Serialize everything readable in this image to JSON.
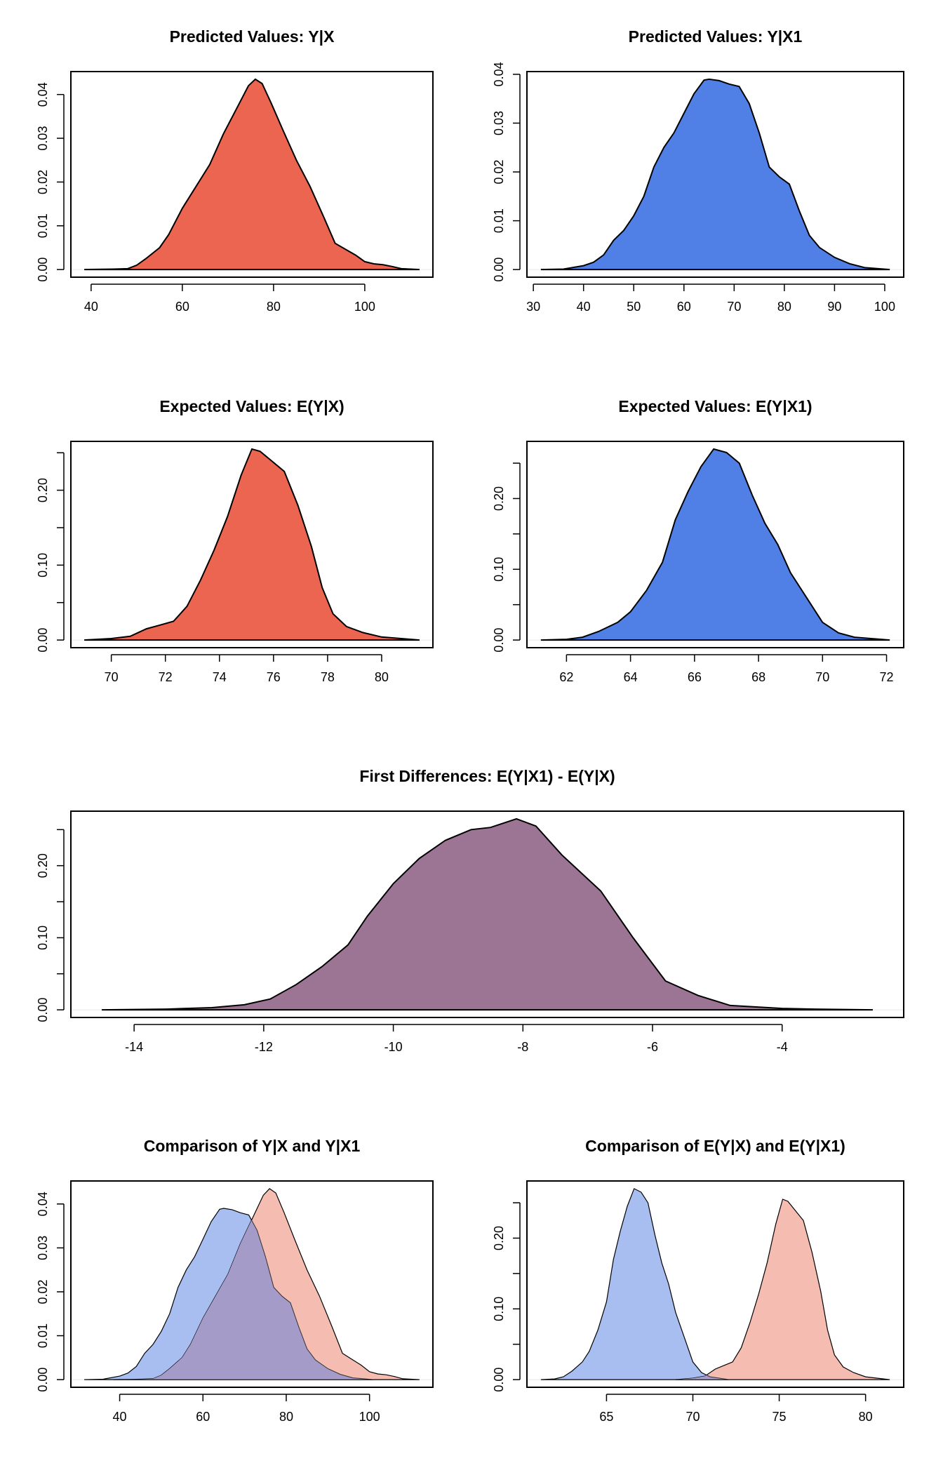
{
  "chart_data": [
    {
      "type": "area",
      "title": "Predicted Values: Y|X",
      "xticks": [
        40,
        60,
        80,
        100
      ],
      "yticks": [
        0,
        0.01,
        0.02,
        0.03,
        0.04
      ],
      "ytick_labels": [
        "0.00",
        "0.01",
        "0.02",
        "0.03",
        "0.04"
      ],
      "series": [
        {
          "name": "Y|X",
          "color": "#EB6550",
          "points": [
            [
              38.5,
              0
            ],
            [
              45,
              0.0001
            ],
            [
              48,
              0.0002
            ],
            [
              50,
              0.001
            ],
            [
              52,
              0.0025
            ],
            [
              55,
              0.005
            ],
            [
              57,
              0.008
            ],
            [
              60,
              0.014
            ],
            [
              63,
              0.019
            ],
            [
              66,
              0.024
            ],
            [
              69,
              0.031
            ],
            [
              72,
              0.037
            ],
            [
              74.5,
              0.042
            ],
            [
              76,
              0.0435
            ],
            [
              77.5,
              0.0425
            ],
            [
              79.5,
              0.038
            ],
            [
              82,
              0.032
            ],
            [
              85,
              0.025
            ],
            [
              88,
              0.019
            ],
            [
              91,
              0.012
            ],
            [
              93.5,
              0.006
            ],
            [
              96,
              0.0045
            ],
            [
              98,
              0.0033
            ],
            [
              100,
              0.0018
            ],
            [
              102,
              0.0013
            ],
            [
              104,
              0.0011
            ],
            [
              106,
              0.0007
            ],
            [
              108,
              0.0002
            ],
            [
              112,
              0
            ]
          ]
        }
      ]
    },
    {
      "type": "area",
      "title": "Predicted Values: Y|X1",
      "xticks": [
        30,
        40,
        50,
        60,
        70,
        80,
        90,
        100
      ],
      "yticks": [
        0,
        0.01,
        0.02,
        0.03,
        0.04
      ],
      "ytick_labels": [
        "0.00",
        "0.01",
        "0.02",
        "0.03",
        "0.04"
      ],
      "series": [
        {
          "name": "Y|X1",
          "color": "#5080E6",
          "points": [
            [
              31.5,
              0
            ],
            [
              36,
              0.0001
            ],
            [
              40,
              0.0008
            ],
            [
              42,
              0.0015
            ],
            [
              44,
              0.003
            ],
            [
              46,
              0.006
            ],
            [
              48,
              0.008
            ],
            [
              50,
              0.011
            ],
            [
              52,
              0.015
            ],
            [
              54,
              0.021
            ],
            [
              56,
              0.025
            ],
            [
              58,
              0.028
            ],
            [
              60,
              0.032
            ],
            [
              62,
              0.036
            ],
            [
              64,
              0.0388
            ],
            [
              65,
              0.039
            ],
            [
              67,
              0.0387
            ],
            [
              69,
              0.038
            ],
            [
              71,
              0.0375
            ],
            [
              73,
              0.034
            ],
            [
              75,
              0.028
            ],
            [
              77,
              0.021
            ],
            [
              79,
              0.019
            ],
            [
              81,
              0.0175
            ],
            [
              83,
              0.012
            ],
            [
              85,
              0.007
            ],
            [
              87,
              0.0045
            ],
            [
              90,
              0.0025
            ],
            [
              93,
              0.0012
            ],
            [
              96,
              0.0004
            ],
            [
              101,
              0
            ]
          ]
        }
      ]
    },
    {
      "type": "area",
      "title": "Expected Values: E(Y|X)",
      "xticks": [
        70,
        72,
        74,
        76,
        78,
        80
      ],
      "yticks": [
        0,
        0.05,
        0.1,
        0.15,
        0.2,
        0.25
      ],
      "ytick_labels": [
        "0.00",
        "",
        "0.10",
        "",
        "0.20",
        ""
      ],
      "series": [
        {
          "name": "E(Y|X)",
          "color": "#EB6550",
          "points": [
            [
              69,
              0
            ],
            [
              70,
              0.002
            ],
            [
              70.7,
              0.005
            ],
            [
              71.3,
              0.015
            ],
            [
              71.8,
              0.02
            ],
            [
              72.3,
              0.025
            ],
            [
              72.8,
              0.045
            ],
            [
              73.3,
              0.08
            ],
            [
              73.8,
              0.12
            ],
            [
              74.3,
              0.165
            ],
            [
              74.8,
              0.22
            ],
            [
              75.2,
              0.255
            ],
            [
              75.5,
              0.252
            ],
            [
              75.9,
              0.24
            ],
            [
              76.4,
              0.225
            ],
            [
              76.9,
              0.18
            ],
            [
              77.4,
              0.125
            ],
            [
              77.8,
              0.07
            ],
            [
              78.2,
              0.035
            ],
            [
              78.7,
              0.018
            ],
            [
              79.3,
              0.01
            ],
            [
              80,
              0.004
            ],
            [
              81.4,
              0
            ]
          ]
        }
      ]
    },
    {
      "type": "area",
      "title": "Expected Values: E(Y|X1)",
      "xticks": [
        62,
        64,
        66,
        68,
        70,
        72
      ],
      "yticks": [
        0,
        0.05,
        0.1,
        0.15,
        0.2,
        0.25
      ],
      "ytick_labels": [
        "0.00",
        "",
        "0.10",
        "",
        "0.20",
        ""
      ],
      "series": [
        {
          "name": "E(Y|X1)",
          "color": "#5080E6",
          "points": [
            [
              61.2,
              0
            ],
            [
              62,
              0.001
            ],
            [
              62.5,
              0.004
            ],
            [
              63,
              0.012
            ],
            [
              63.6,
              0.025
            ],
            [
              64,
              0.04
            ],
            [
              64.5,
              0.07
            ],
            [
              65,
              0.11
            ],
            [
              65.4,
              0.17
            ],
            [
              65.8,
              0.21
            ],
            [
              66.2,
              0.245
            ],
            [
              66.6,
              0.27
            ],
            [
              67,
              0.265
            ],
            [
              67.4,
              0.25
            ],
            [
              67.8,
              0.205
            ],
            [
              68.2,
              0.165
            ],
            [
              68.6,
              0.135
            ],
            [
              69,
              0.095
            ],
            [
              69.5,
              0.06
            ],
            [
              70,
              0.025
            ],
            [
              70.5,
              0.01
            ],
            [
              71,
              0.004
            ],
            [
              72.1,
              0
            ]
          ]
        }
      ]
    },
    {
      "type": "area",
      "title": "First Differences: E(Y|X1) - E(Y|X)",
      "xticks": [
        -14,
        -12,
        -10,
        -8,
        -6,
        -4
      ],
      "yticks": [
        0,
        0.05,
        0.1,
        0.15,
        0.2,
        0.25
      ],
      "ytick_labels": [
        "0.00",
        "",
        "0.10",
        "",
        "0.20",
        ""
      ],
      "series": [
        {
          "name": "E(Y|X1) - E(Y|X)",
          "color": "#9C7594",
          "points": [
            [
              -14.5,
              0
            ],
            [
              -13.5,
              0.001
            ],
            [
              -12.8,
              0.003
            ],
            [
              -12.3,
              0.007
            ],
            [
              -11.9,
              0.015
            ],
            [
              -11.5,
              0.035
            ],
            [
              -11.1,
              0.06
            ],
            [
              -10.7,
              0.09
            ],
            [
              -10.4,
              0.13
            ],
            [
              -10,
              0.175
            ],
            [
              -9.6,
              0.21
            ],
            [
              -9.2,
              0.235
            ],
            [
              -8.8,
              0.25
            ],
            [
              -8.5,
              0.253
            ],
            [
              -8.1,
              0.265
            ],
            [
              -7.8,
              0.255
            ],
            [
              -7.4,
              0.215
            ],
            [
              -6.8,
              0.165
            ],
            [
              -6.3,
              0.1
            ],
            [
              -5.8,
              0.04
            ],
            [
              -5.3,
              0.02
            ],
            [
              -4.8,
              0.006
            ],
            [
              -4,
              0.002
            ],
            [
              -3.5,
              0.001
            ],
            [
              -2.6,
              0
            ]
          ]
        }
      ]
    },
    {
      "type": "area",
      "title": "Comparison of Y|X and Y|X1",
      "xticks": [
        40,
        60,
        80,
        100
      ],
      "yticks": [
        0,
        0.01,
        0.02,
        0.03,
        0.04
      ],
      "ytick_labels": [
        "0.00",
        "0.01",
        "0.02",
        "0.03",
        "0.04"
      ],
      "series": [
        {
          "name": "Y|X1",
          "color": "#A8BEF0",
          "points": [
            [
              31.5,
              0
            ],
            [
              36,
              0.0001
            ],
            [
              40,
              0.0008
            ],
            [
              42,
              0.0015
            ],
            [
              44,
              0.003
            ],
            [
              46,
              0.006
            ],
            [
              48,
              0.008
            ],
            [
              50,
              0.011
            ],
            [
              52,
              0.015
            ],
            [
              54,
              0.021
            ],
            [
              56,
              0.025
            ],
            [
              58,
              0.028
            ],
            [
              60,
              0.032
            ],
            [
              62,
              0.036
            ],
            [
              64,
              0.0388
            ],
            [
              65,
              0.039
            ],
            [
              67,
              0.0387
            ],
            [
              69,
              0.038
            ],
            [
              71,
              0.0375
            ],
            [
              73,
              0.034
            ],
            [
              75,
              0.028
            ],
            [
              77,
              0.021
            ],
            [
              79,
              0.019
            ],
            [
              81,
              0.0175
            ],
            [
              83,
              0.012
            ],
            [
              85,
              0.007
            ],
            [
              87,
              0.0045
            ],
            [
              90,
              0.0025
            ],
            [
              93,
              0.0012
            ],
            [
              96,
              0.0004
            ],
            [
              101,
              0
            ]
          ]
        },
        {
          "name": "Y|X",
          "color": "#F3B0A3",
          "points": [
            [
              38.5,
              0
            ],
            [
              45,
              0.0001
            ],
            [
              48,
              0.0002
            ],
            [
              50,
              0.001
            ],
            [
              52,
              0.0025
            ],
            [
              55,
              0.005
            ],
            [
              57,
              0.008
            ],
            [
              60,
              0.014
            ],
            [
              63,
              0.019
            ],
            [
              66,
              0.024
            ],
            [
              69,
              0.031
            ],
            [
              72,
              0.037
            ],
            [
              74.5,
              0.042
            ],
            [
              76,
              0.0435
            ],
            [
              77.5,
              0.0425
            ],
            [
              79.5,
              0.038
            ],
            [
              82,
              0.032
            ],
            [
              85,
              0.025
            ],
            [
              88,
              0.019
            ],
            [
              91,
              0.012
            ],
            [
              93.5,
              0.006
            ],
            [
              96,
              0.0045
            ],
            [
              98,
              0.0033
            ],
            [
              100,
              0.0018
            ],
            [
              102,
              0.0013
            ],
            [
              104,
              0.0011
            ],
            [
              106,
              0.0007
            ],
            [
              108,
              0.0002
            ],
            [
              112,
              0
            ]
          ]
        }
      ]
    },
    {
      "type": "area",
      "title": "Comparison of E(Y|X) and E(Y|X1)",
      "xticks": [
        65,
        70,
        75,
        80
      ],
      "yticks": [
        0,
        0.05,
        0.1,
        0.15,
        0.2,
        0.25
      ],
      "ytick_labels": [
        "0.00",
        "",
        "0.10",
        "",
        "0.20",
        ""
      ],
      "series": [
        {
          "name": "E(Y|X1)",
          "color": "#A8BEF0",
          "points": [
            [
              61.2,
              0
            ],
            [
              62,
              0.001
            ],
            [
              62.5,
              0.004
            ],
            [
              63,
              0.012
            ],
            [
              63.6,
              0.025
            ],
            [
              64,
              0.04
            ],
            [
              64.5,
              0.07
            ],
            [
              65,
              0.11
            ],
            [
              65.4,
              0.17
            ],
            [
              65.8,
              0.21
            ],
            [
              66.2,
              0.245
            ],
            [
              66.6,
              0.27
            ],
            [
              67,
              0.265
            ],
            [
              67.4,
              0.25
            ],
            [
              67.8,
              0.205
            ],
            [
              68.2,
              0.165
            ],
            [
              68.6,
              0.135
            ],
            [
              69,
              0.095
            ],
            [
              69.5,
              0.06
            ],
            [
              70,
              0.025
            ],
            [
              70.5,
              0.01
            ],
            [
              71,
              0.004
            ],
            [
              72.1,
              0
            ]
          ]
        },
        {
          "name": "E(Y|X)",
          "color": "#F3B0A3",
          "points": [
            [
              69,
              0
            ],
            [
              70,
              0.002
            ],
            [
              70.7,
              0.005
            ],
            [
              71.3,
              0.015
            ],
            [
              71.8,
              0.02
            ],
            [
              72.3,
              0.025
            ],
            [
              72.8,
              0.045
            ],
            [
              73.3,
              0.08
            ],
            [
              73.8,
              0.12
            ],
            [
              74.3,
              0.165
            ],
            [
              74.8,
              0.22
            ],
            [
              75.2,
              0.255
            ],
            [
              75.5,
              0.252
            ],
            [
              75.9,
              0.24
            ],
            [
              76.4,
              0.225
            ],
            [
              76.9,
              0.18
            ],
            [
              77.4,
              0.125
            ],
            [
              77.8,
              0.07
            ],
            [
              78.2,
              0.035
            ],
            [
              78.7,
              0.018
            ],
            [
              79.3,
              0.01
            ],
            [
              80,
              0.004
            ],
            [
              81.4,
              0
            ]
          ]
        }
      ]
    }
  ]
}
